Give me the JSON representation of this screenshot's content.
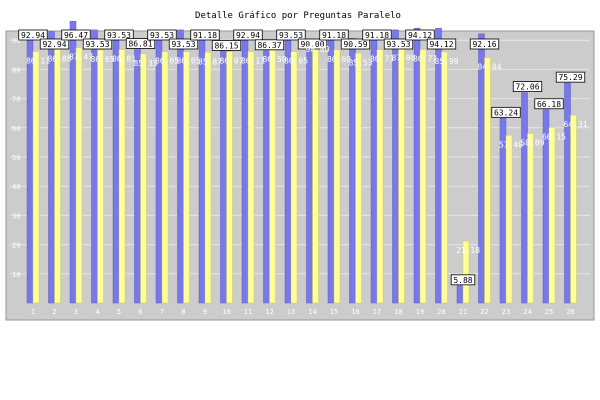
{
  "chart_data": {
    "type": "bar",
    "title": "Detalle Gráfico por Preguntas Paralelo",
    "xlabel": "",
    "ylabel": "",
    "ylim": [
      0,
      100
    ],
    "yticks": [
      10,
      20,
      30,
      40,
      50,
      60,
      70,
      80,
      90
    ],
    "categories": [
      "1",
      "2",
      "3",
      "4",
      "5",
      "6",
      "7",
      "8",
      "9",
      "10",
      "11",
      "12",
      "13",
      "14",
      "15",
      "16",
      "17",
      "18",
      "19",
      "20",
      "21",
      "22",
      "23",
      "24",
      "25",
      "26"
    ],
    "series": [
      {
        "name": "",
        "color": "#7878e8",
        "values": [
          92.94,
          92.94,
          96.47,
          93.53,
          93.53,
          86.81,
          93.53,
          93.53,
          91.18,
          86.15,
          92.94,
          86.37,
          93.53,
          90.0,
          91.18,
          90.59,
          91.18,
          93.53,
          94.12,
          94.12,
          5.88,
          92.16,
          63.24,
          72.06,
          66.18,
          75.29
        ]
      },
      {
        "name": "",
        "color": "#ffff99",
        "values": [
          86.11,
          86.88,
          87.47,
          86.65,
          86.81,
          85.33,
          86.05,
          86.05,
          85.87,
          86.07,
          86.11,
          86.59,
          86.05,
          90.0,
          86.69,
          85.53,
          86.73,
          87.08,
          86.77,
          85.99,
          21.18,
          84.04,
          57.4,
          58.09,
          60.15,
          64.31
        ]
      }
    ],
    "grid": true,
    "legend": "none"
  }
}
